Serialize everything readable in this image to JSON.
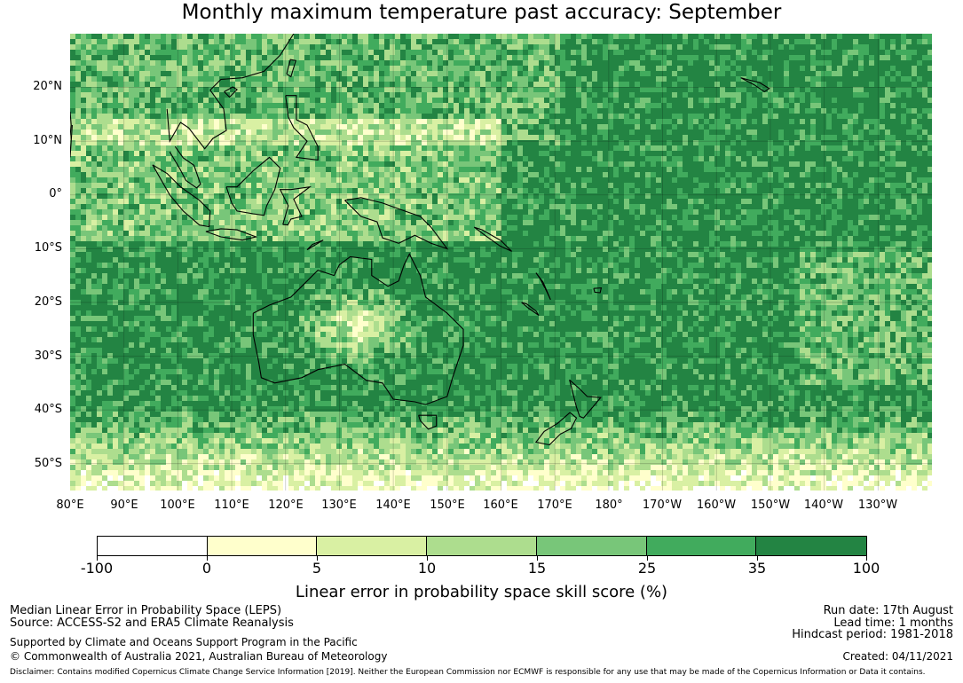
{
  "title": "Monthly maximum temperature past accuracy: September",
  "map": {
    "lat_labels": [
      "20°N",
      "10°N",
      "0°",
      "10°S",
      "20°S",
      "30°S",
      "40°S",
      "50°S"
    ],
    "lon_labels": [
      "80°E",
      "90°E",
      "100°E",
      "110°E",
      "120°E",
      "130°E",
      "140°E",
      "150°E",
      "160°E",
      "170°E",
      "180°",
      "170°W",
      "160°W",
      "150°W",
      "140°W",
      "130°W"
    ],
    "lat_range": [
      -55,
      30
    ],
    "lon_range": [
      80,
      240
    ],
    "grid": true
  },
  "colorbar": {
    "ticks": [
      "-100",
      "0",
      "5",
      "10",
      "15",
      "25",
      "35",
      "100"
    ],
    "colors": [
      "#ffffff",
      "#ffffcc",
      "#d9f0a3",
      "#addd8e",
      "#78c679",
      "#41ab5d",
      "#238443"
    ],
    "label": "Linear error in probability space skill score (%)"
  },
  "footer": {
    "method": "Median Linear Error in Probability Space (LEPS)",
    "source": "Source: ACCESS-S2 and ERA5 Climate Reanalysis",
    "support": "Supported by Climate and Oceans Support Program in the Pacific",
    "copyright": "© Commonwealth of Australia 2021, Australian Bureau of Meteorology",
    "run_date": "Run date: 17th August",
    "lead_time": "Lead time: 1 months",
    "hindcast": "Hindcast period: 1981-2018",
    "created": "Created: 04/11/2021",
    "disclaimer": "Disclaimer: Contains modified Copernicus Climate Change Service Information [2019]. Neither the European Commission nor ECMWF is responsible for any use that may be made of the Copernicus Information or Data it contains."
  }
}
